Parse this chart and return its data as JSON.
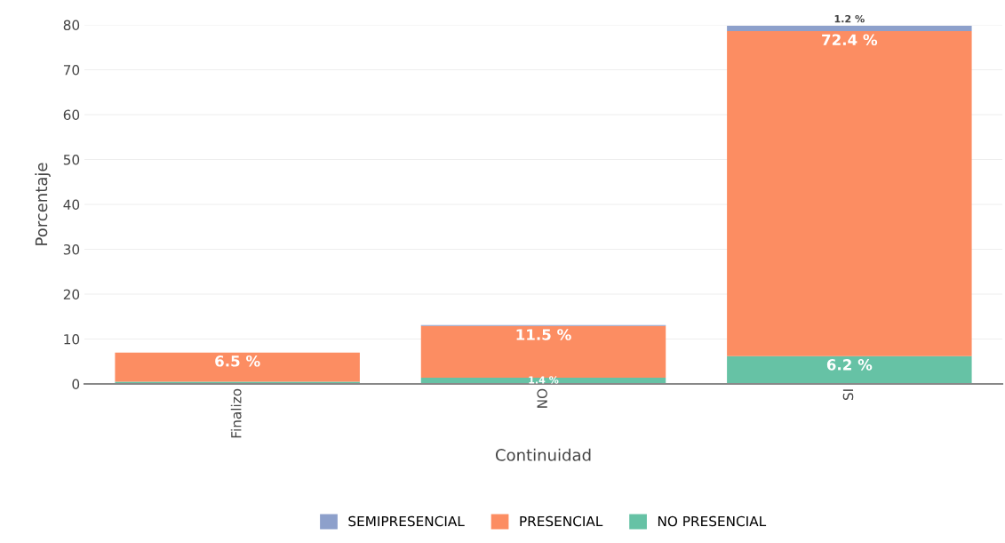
{
  "chart_data": {
    "type": "bar",
    "stacked": true,
    "xlabel": "Continuidad",
    "ylabel": "Porcentaje",
    "categories": [
      "Finalizo",
      "NO",
      "SI"
    ],
    "series": [
      {
        "name": "NO PRESENCIAL",
        "color": "#66c2a5",
        "values": [
          0.5,
          1.4,
          6.2
        ],
        "value_labels": [
          null,
          "1.4 %",
          "6.2 %"
        ]
      },
      {
        "name": "PRESENCIAL",
        "color": "#fc8d62",
        "values": [
          6.5,
          11.5,
          72.4
        ],
        "value_labels": [
          "6.5 %",
          "11.5 %",
          "72.4 %"
        ]
      },
      {
        "name": "SEMIPRESENCIAL",
        "color": "#8da0cb",
        "values": [
          0,
          0.2,
          1.2
        ],
        "value_labels": [
          null,
          null,
          "1.2 %"
        ]
      }
    ],
    "ylim": [
      0,
      80
    ],
    "yticks": [
      0,
      10,
      20,
      30,
      40,
      50,
      60,
      70,
      80
    ],
    "grid": "y",
    "legend": "bottom"
  }
}
